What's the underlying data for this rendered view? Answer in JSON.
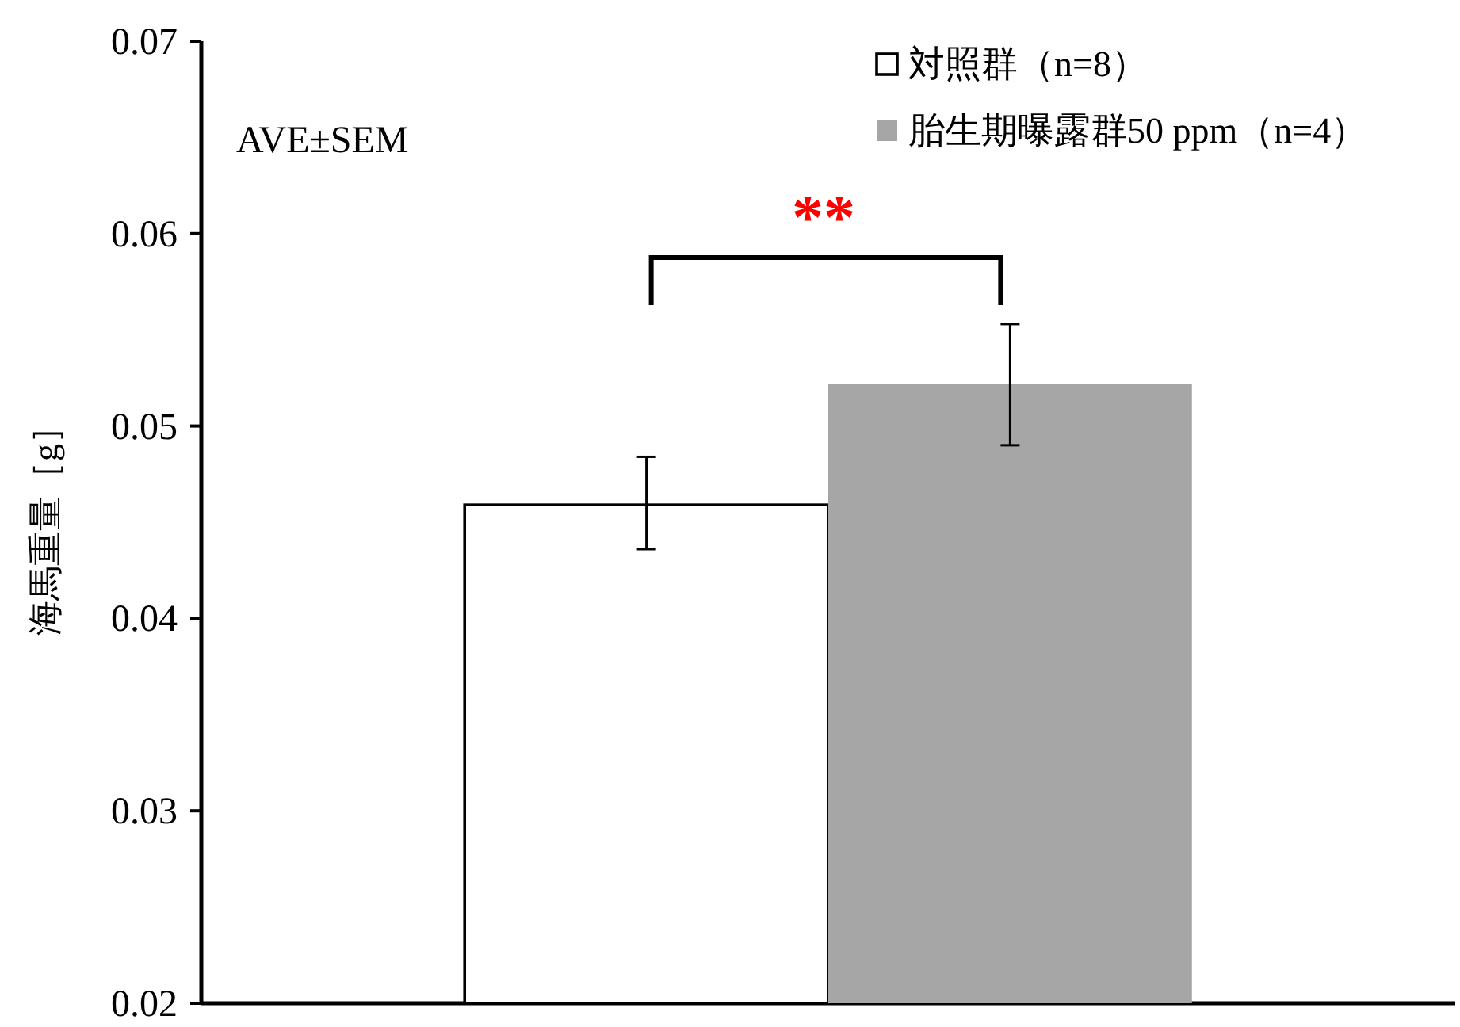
{
  "chart_data": {
    "type": "bar",
    "ylabel": "海馬重量［g］",
    "categories": [
      null
    ],
    "series": [
      {
        "name": "対照群（n=8）",
        "color": "#ffffff",
        "values": [
          0.0459
        ],
        "errors": [
          [
            0.0436,
            0.0484
          ]
        ]
      },
      {
        "name": "胎生期曝露群50 ppm（n=4）",
        "color": "#a6a6a6",
        "values": [
          0.0522
        ],
        "errors": [
          [
            0.049,
            0.0553
          ]
        ]
      }
    ],
    "ylim": [
      0.02,
      0.07
    ],
    "yticks": [
      0.02,
      0.03,
      0.04,
      0.05,
      0.06,
      0.07
    ],
    "grid": false,
    "legend": "top right",
    "annotations": [
      "AVE±SEM",
      "**"
    ]
  }
}
